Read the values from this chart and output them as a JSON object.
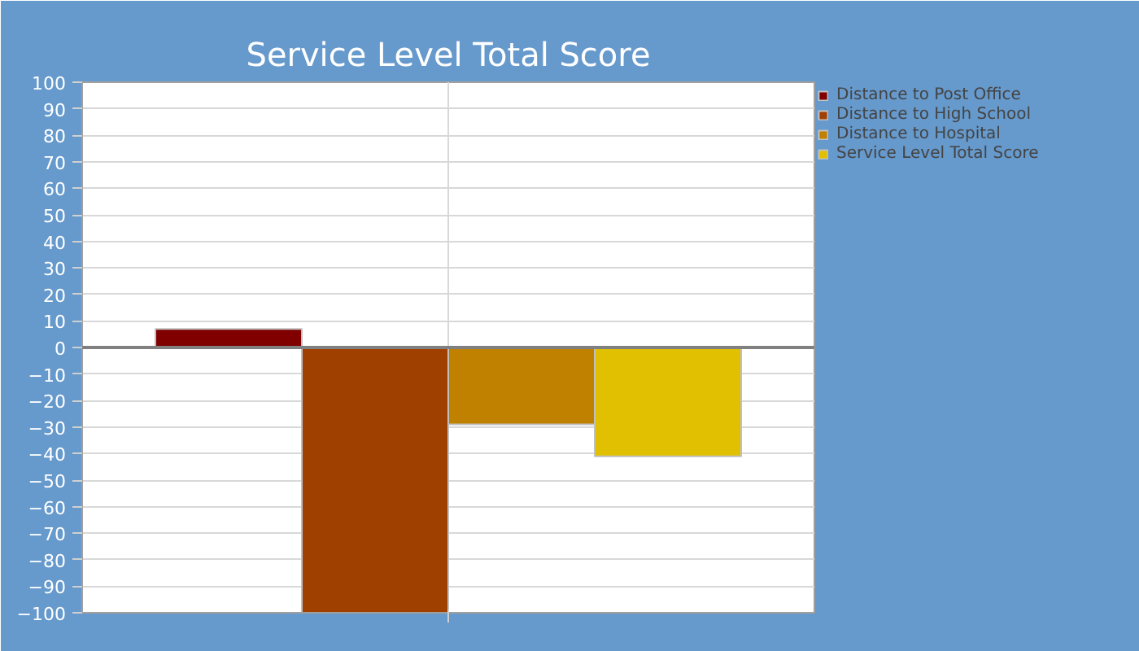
{
  "chart_data": {
    "type": "bar",
    "title": "Service Level Total Score",
    "categories": [
      null
    ],
    "series": [
      {
        "name": "Distance to Post Office",
        "color": "#800000",
        "values": [
          7
        ]
      },
      {
        "name": "Distance to High School",
        "color": "#a04000",
        "values": [
          -100
        ]
      },
      {
        "name": "Distance to Hospital",
        "color": "#c08000",
        "values": [
          -29
        ]
      },
      {
        "name": "Service Level Total Score",
        "color": "#e0c000",
        "values": [
          -41
        ]
      }
    ],
    "ylim": [
      -100,
      100
    ],
    "yticks": [
      -100,
      -90,
      -80,
      -70,
      -60,
      -50,
      -40,
      -30,
      -20,
      -10,
      0,
      10,
      20,
      30,
      40,
      50,
      60,
      70,
      80,
      90,
      100
    ],
    "ref_lines": [
      {
        "axis": "y",
        "value": 0,
        "color": "#808080"
      }
    ],
    "grid": true,
    "legend": "top right"
  }
}
